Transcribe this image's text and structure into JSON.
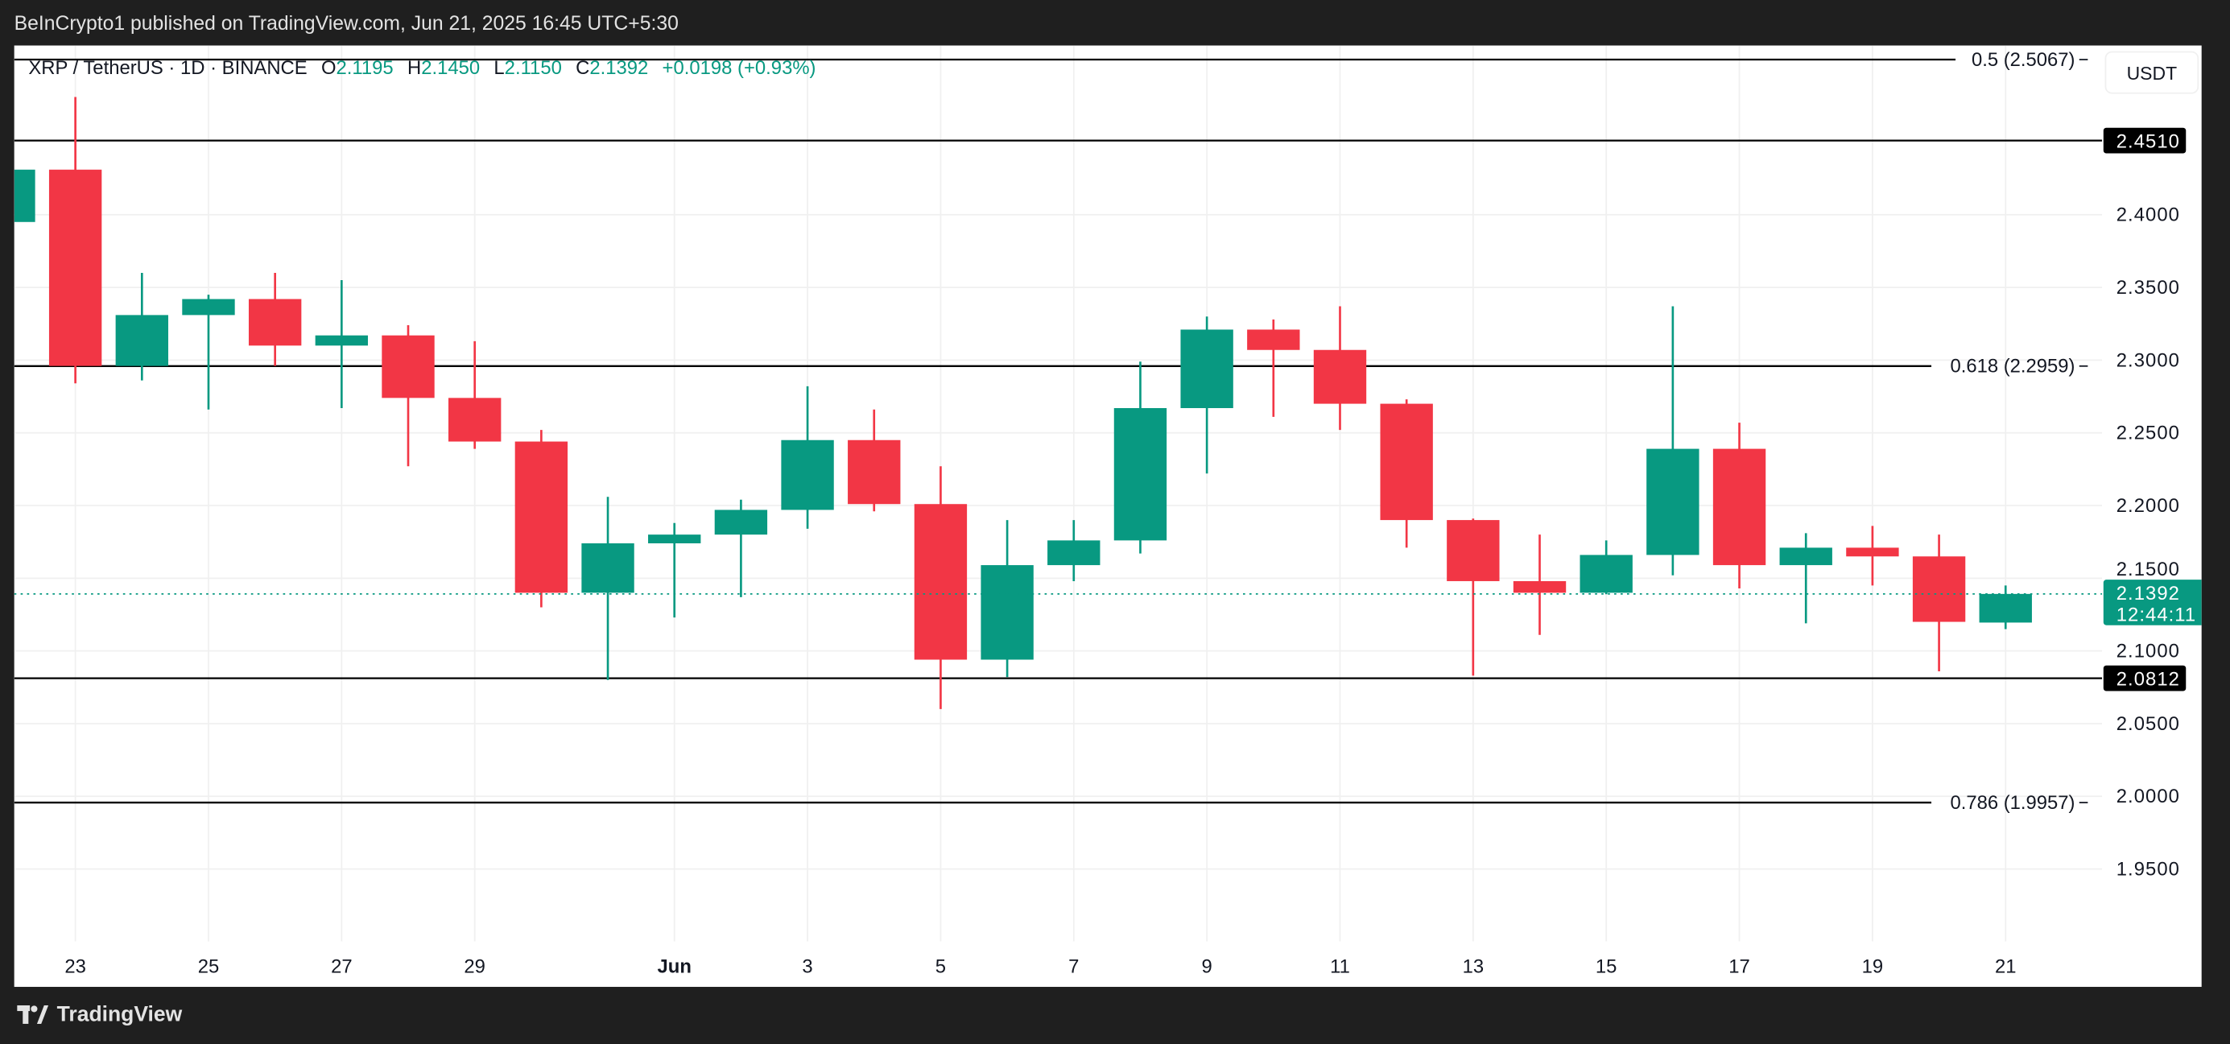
{
  "header": {
    "published_text": "BeInCrypto1 published on TradingView.com, Jun 21, 2025 16:45 UTC+5:30"
  },
  "legend": {
    "symbol": "XRP / TetherUS · 1D · BINANCE",
    "o_label": "O",
    "o_value": "2.1195",
    "h_label": "H",
    "h_value": "2.1450",
    "l_label": "L",
    "l_value": "2.1150",
    "c_label": "C",
    "c_value": "2.1392",
    "change": "+0.0198 (+0.93%)"
  },
  "currency_button": "USDT",
  "footer": {
    "brand": "TradingView"
  },
  "colors": {
    "up": "#089981",
    "down": "#f23645",
    "level_line": "#000000",
    "background": "#ffffff",
    "frame": "#1f1f1f"
  },
  "chart_data": {
    "type": "candlestick",
    "title": "",
    "xlabel": "",
    "ylabel": "",
    "ylim": [
      1.93,
      2.52
    ],
    "grid": true,
    "x": [
      "May 22",
      "May 23",
      "May 24",
      "May 25",
      "May 26",
      "May 27",
      "May 28",
      "May 29",
      "May 30",
      "May 31",
      "Jun 1",
      "Jun 2",
      "Jun 3",
      "Jun 4",
      "Jun 5",
      "Jun 6",
      "Jun 7",
      "Jun 8",
      "Jun 9",
      "Jun 10",
      "Jun 11",
      "Jun 12",
      "Jun 13",
      "Jun 14",
      "Jun 15",
      "Jun 16",
      "Jun 17",
      "Jun 18",
      "Jun 19",
      "Jun 20",
      "Jun 21"
    ],
    "ohlc": [
      [
        2.395,
        2.45,
        2.39,
        2.431
      ],
      [
        2.431,
        2.481,
        2.284,
        2.296
      ],
      [
        2.296,
        2.36,
        2.286,
        2.331
      ],
      [
        2.331,
        2.345,
        2.266,
        2.342
      ],
      [
        2.342,
        2.36,
        2.296,
        2.31
      ],
      [
        2.31,
        2.355,
        2.267,
        2.317
      ],
      [
        2.317,
        2.324,
        2.227,
        2.274
      ],
      [
        2.274,
        2.313,
        2.239,
        2.244
      ],
      [
        2.244,
        2.252,
        2.13,
        2.14
      ],
      [
        2.14,
        2.206,
        2.08,
        2.174
      ],
      [
        2.174,
        2.188,
        2.123,
        2.18
      ],
      [
        2.18,
        2.204,
        2.137,
        2.197
      ],
      [
        2.197,
        2.282,
        2.184,
        2.245
      ],
      [
        2.245,
        2.266,
        2.196,
        2.201
      ],
      [
        2.201,
        2.227,
        2.06,
        2.094
      ],
      [
        2.094,
        2.19,
        2.082,
        2.159
      ],
      [
        2.159,
        2.19,
        2.148,
        2.176
      ],
      [
        2.176,
        2.299,
        2.167,
        2.267
      ],
      [
        2.267,
        2.33,
        2.222,
        2.321
      ],
      [
        2.321,
        2.328,
        2.261,
        2.307
      ],
      [
        2.307,
        2.337,
        2.252,
        2.27
      ],
      [
        2.27,
        2.273,
        2.171,
        2.19
      ],
      [
        2.19,
        2.191,
        2.083,
        2.148
      ],
      [
        2.148,
        2.18,
        2.111,
        2.14
      ],
      [
        2.14,
        2.176,
        2.139,
        2.166
      ],
      [
        2.166,
        2.337,
        2.152,
        2.239
      ],
      [
        2.239,
        2.257,
        2.143,
        2.159
      ],
      [
        2.159,
        2.181,
        2.119,
        2.171
      ],
      [
        2.171,
        2.186,
        2.145,
        2.165
      ],
      [
        2.165,
        2.18,
        2.086,
        2.12
      ],
      [
        2.1195,
        2.145,
        2.115,
        2.1392
      ]
    ],
    "x_tick_labels": [
      {
        "day_index": 1,
        "label": "23"
      },
      {
        "day_index": 3,
        "label": "25"
      },
      {
        "day_index": 5,
        "label": "27"
      },
      {
        "day_index": 7,
        "label": "29"
      },
      {
        "day_index": 10,
        "label": "Jun"
      },
      {
        "day_index": 12,
        "label": "3"
      },
      {
        "day_index": 14,
        "label": "5"
      },
      {
        "day_index": 16,
        "label": "7"
      },
      {
        "day_index": 18,
        "label": "9"
      },
      {
        "day_index": 20,
        "label": "11"
      },
      {
        "day_index": 22,
        "label": "13"
      },
      {
        "day_index": 24,
        "label": "15"
      },
      {
        "day_index": 26,
        "label": "17"
      },
      {
        "day_index": 28,
        "label": "19"
      },
      {
        "day_index": 30,
        "label": "21"
      }
    ],
    "y_ticks": [
      "2.4000",
      "2.3500",
      "2.3000",
      "2.2500",
      "2.2000",
      "2.1500",
      "2.1000",
      "2.0500",
      "2.0000",
      "1.9500"
    ],
    "fib_levels": [
      {
        "price": 2.5067,
        "label": "0.5 (2.5067)"
      },
      {
        "price": 2.2959,
        "label": "0.618 (2.2959)"
      },
      {
        "price": 1.9957,
        "label": "0.786 (1.9957)"
      }
    ],
    "horizontal_levels": [
      {
        "price": 2.451,
        "label": "2.4510"
      },
      {
        "price": 2.0812,
        "label": "2.0812"
      }
    ],
    "current_price": {
      "price": 2.1392,
      "label": "2.1392",
      "countdown": "12:44:11"
    }
  }
}
